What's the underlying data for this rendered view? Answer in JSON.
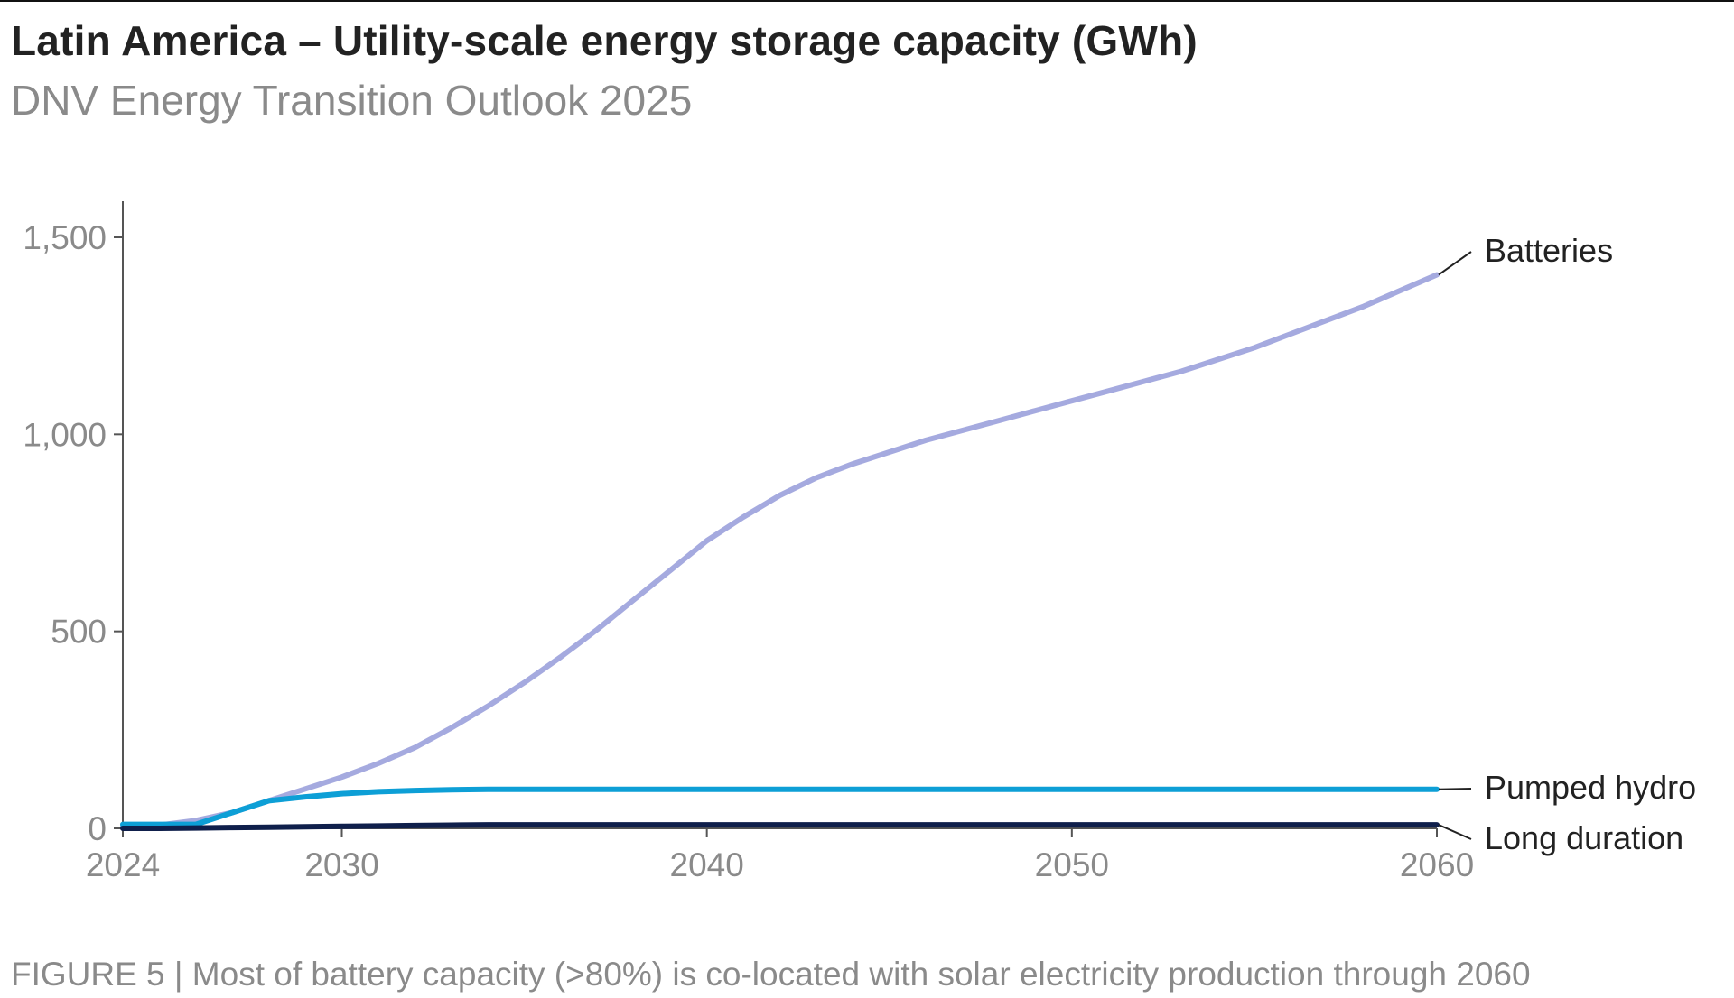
{
  "title": "Latin America – Utility-scale energy storage capacity (GWh)",
  "subtitle": "DNV Energy Transition Outlook 2025",
  "caption": "FIGURE 5 | Most of battery capacity (>80%) is co-located with solar electricity production through 2060",
  "colors": {
    "batteries": "#a5aadf",
    "pumped_hydro": "#0d9fd6",
    "long_duration": "#0f1f4b",
    "axis": "#555555"
  },
  "chart_data": {
    "type": "line",
    "title": "Latin America – Utility-scale energy storage capacity (GWh)",
    "subtitle": "DNV Energy Transition Outlook 2025",
    "xlabel": "",
    "ylabel": "",
    "xlim": [
      2024,
      2060
    ],
    "ylim": [
      0,
      1600
    ],
    "x_ticks": [
      2024,
      2030,
      2040,
      2050,
      2060
    ],
    "x_tick_labels": [
      "2024",
      "2030",
      "2040",
      "2050",
      "2060"
    ],
    "y_ticks": [
      0,
      500,
      1000,
      1500
    ],
    "y_tick_labels": [
      "0",
      "500",
      "1,000",
      "1,500"
    ],
    "grid": false,
    "legend": "direct labels at line ends (right)",
    "x": [
      2024,
      2025,
      2026,
      2027,
      2028,
      2029,
      2030,
      2031,
      2032,
      2033,
      2034,
      2035,
      2036,
      2037,
      2038,
      2039,
      2040,
      2041,
      2042,
      2043,
      2044,
      2045,
      2046,
      2047,
      2048,
      2049,
      2050,
      2051,
      2052,
      2053,
      2054,
      2055,
      2056,
      2057,
      2058,
      2059,
      2060
    ],
    "series": [
      {
        "name": "Batteries",
        "color": "#a5aadf",
        "values": [
          5,
          8,
          20,
          40,
          70,
          100,
          130,
          165,
          205,
          255,
          310,
          370,
          435,
          505,
          580,
          655,
          730,
          790,
          845,
          890,
          925,
          955,
          985,
          1010,
          1035,
          1060,
          1085,
          1110,
          1135,
          1160,
          1190,
          1220,
          1255,
          1290,
          1325,
          1365,
          1405
        ]
      },
      {
        "name": "Pumped hydro",
        "color": "#0d9fd6",
        "values": [
          10,
          10,
          10,
          40,
          70,
          80,
          88,
          93,
          96,
          98,
          99,
          99,
          99,
          99,
          99,
          99,
          99,
          99,
          99,
          99,
          99,
          99,
          99,
          99,
          99,
          99,
          99,
          99,
          99,
          99,
          99,
          99,
          99,
          99,
          99,
          99,
          99
        ]
      },
      {
        "name": "Long duration",
        "color": "#0f1f4b",
        "values": [
          0,
          0,
          1,
          2,
          3,
          4,
          5,
          6,
          7,
          8,
          9,
          9,
          9,
          9,
          9,
          9,
          9,
          9,
          9,
          9,
          9,
          9,
          9,
          9,
          9,
          9,
          9,
          9,
          9,
          9,
          9,
          9,
          9,
          9,
          9,
          9,
          9
        ]
      }
    ]
  }
}
